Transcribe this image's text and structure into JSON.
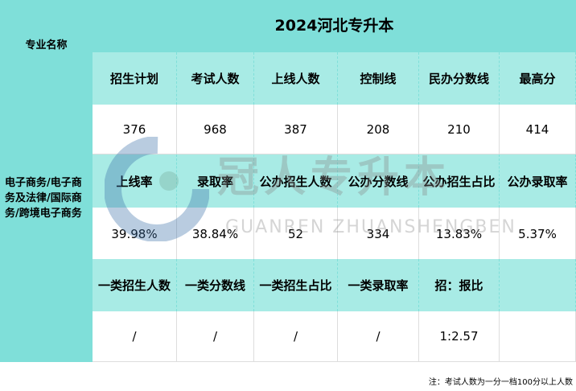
{
  "title": "2024河北专升本",
  "major_header": "专业名称",
  "major": "电子商务/电子商务及法律/国际商务/跨境电子商务",
  "rows": [
    {
      "headers": [
        "招生计划",
        "考试人数",
        "上线人数",
        "控制线",
        "民办分数线",
        "最高分"
      ],
      "values": [
        "376",
        "968",
        "387",
        "208",
        "210",
        "414"
      ]
    },
    {
      "headers": [
        "上线率",
        "录取率",
        "公办招生人数",
        "公办分数线",
        "公办招生占比",
        "公办录取率"
      ],
      "values": [
        "39.98%",
        "38.84%",
        "52",
        "334",
        "13.83%",
        "5.37%"
      ]
    },
    {
      "headers": [
        "一类招生人数",
        "一类分数线",
        "一类招生占比",
        "一类录取率",
        "招：报比",
        ""
      ],
      "values": [
        "/",
        "/",
        "/",
        "/",
        "1:2.57",
        ""
      ]
    }
  ],
  "note": "注：考试人数为一分一档100分以上人数",
  "watermark": {
    "cn": "冠人专升本",
    "en": "GUANREN ZHUANSHENGBEN"
  },
  "colors": {
    "teal": "#7fdfd9",
    "light_teal": "#a8ebe5"
  }
}
